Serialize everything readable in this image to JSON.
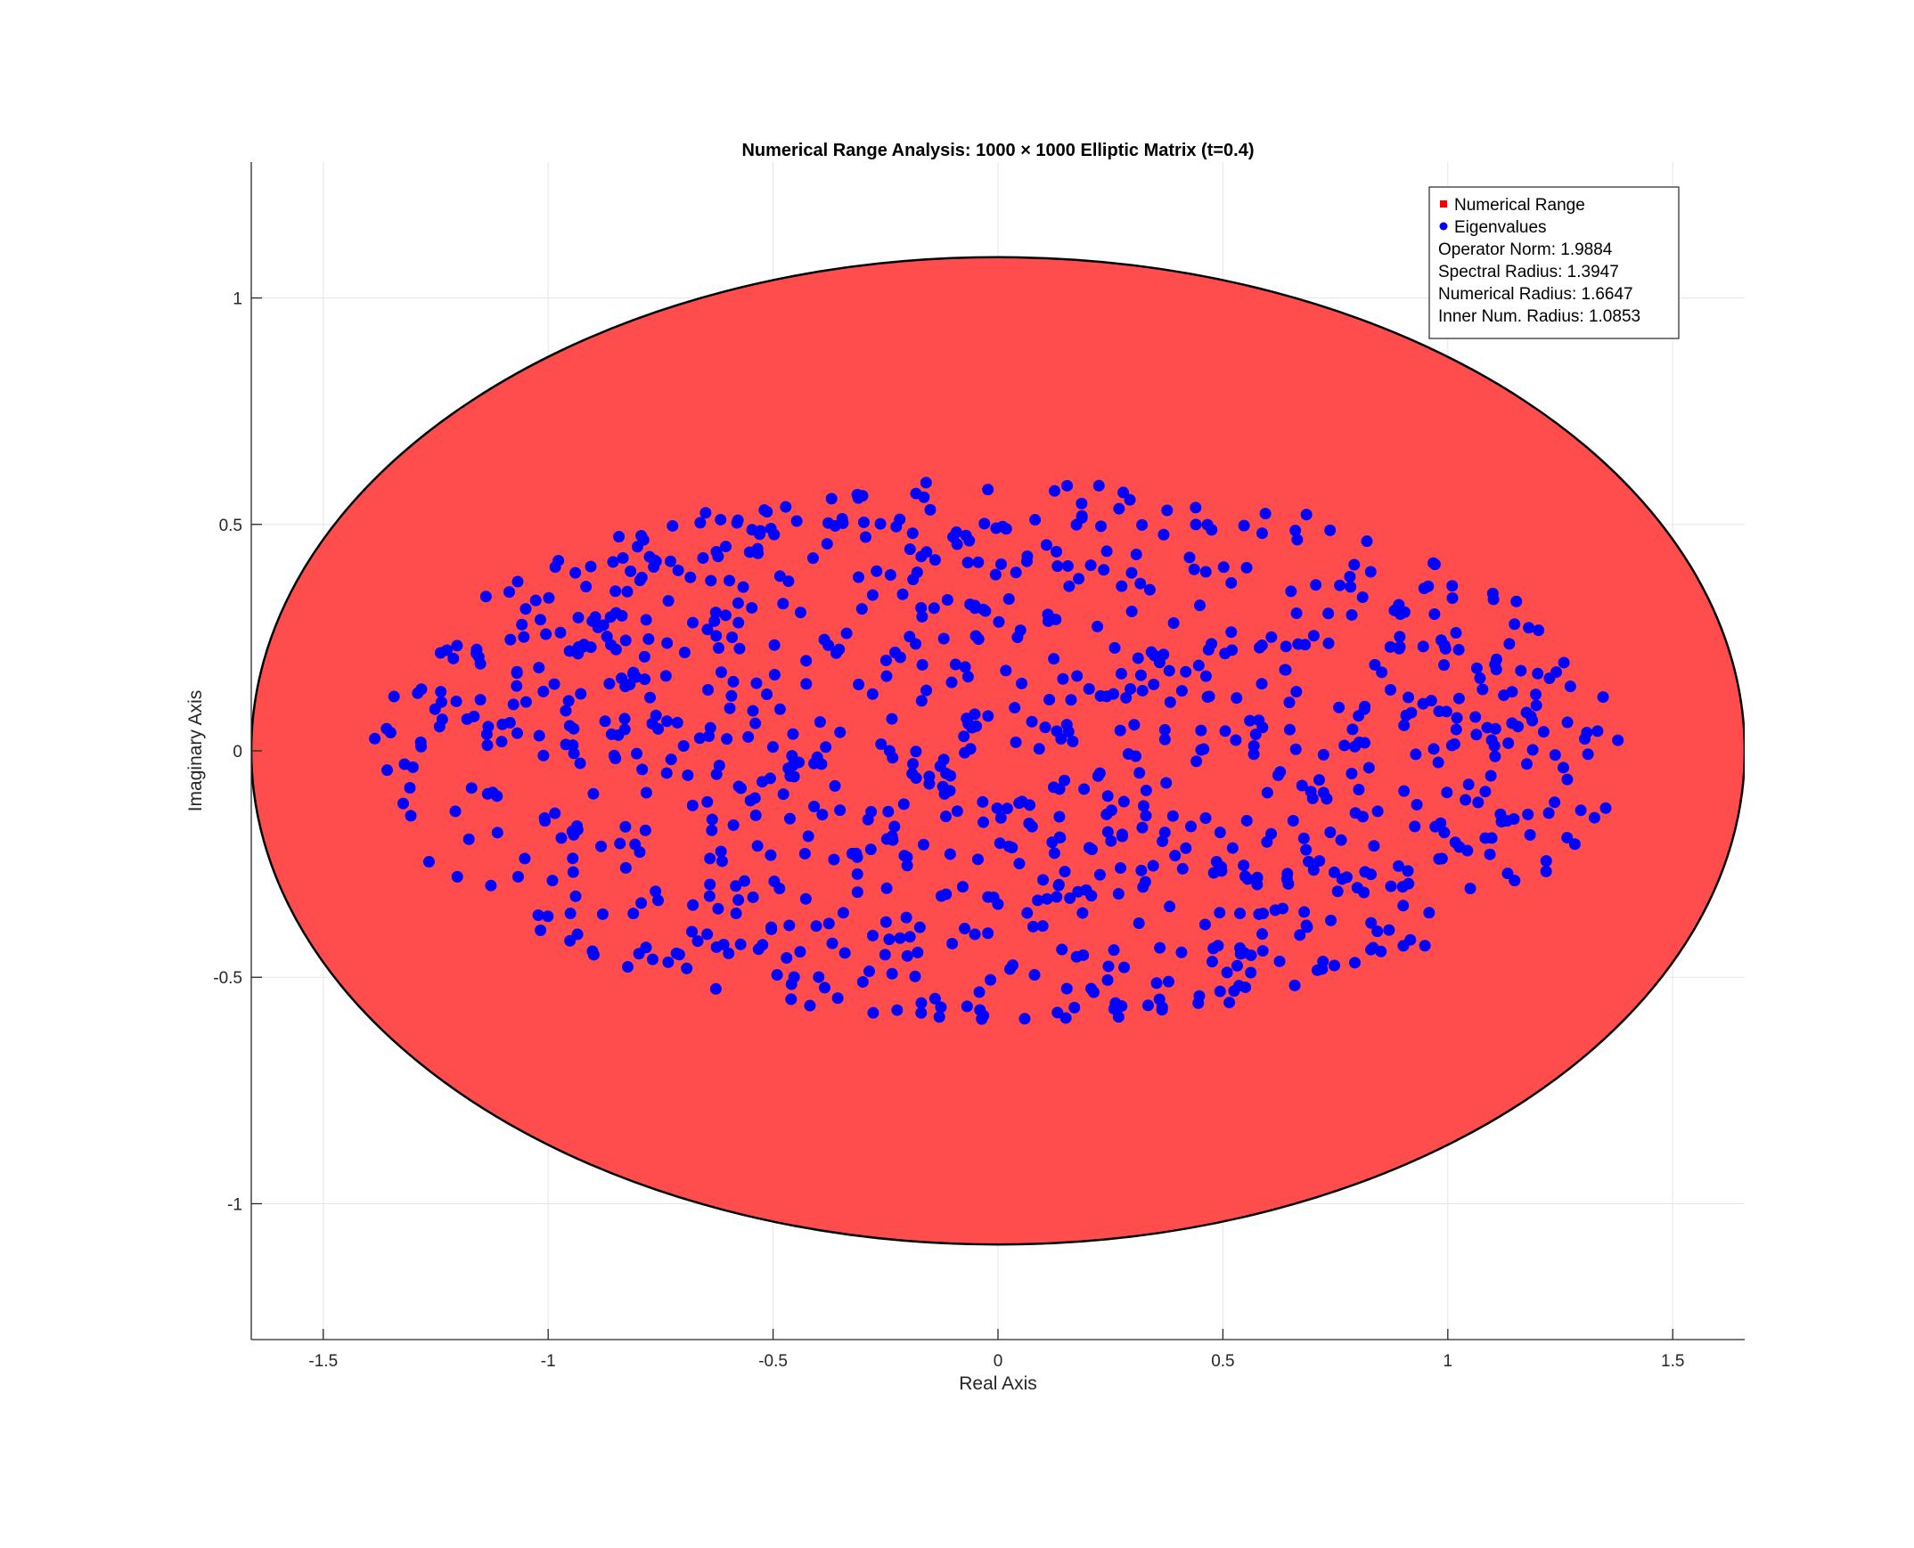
{
  "chart_data": {
    "type": "scatter",
    "title": "Numerical Range Analysis: 1000 × 1000 Elliptic Matrix (t=0.4)",
    "xlabel": "Real Axis",
    "ylabel": "Imaginary Axis",
    "xlim": [
      -1.66,
      1.66
    ],
    "ylim": [
      -1.3,
      1.3
    ],
    "xticks": [
      -1.5,
      -1,
      -0.5,
      0,
      0.5,
      1,
      1.5
    ],
    "xtick_labels": [
      "-1.5",
      "-1",
      "-0.5",
      "0",
      "0.5",
      "1",
      "1.5"
    ],
    "yticks": [
      -1,
      -0.5,
      0,
      0.5,
      1
    ],
    "ytick_labels": [
      "-1",
      "-0.5",
      "0",
      "0.5",
      "1"
    ],
    "grid": true,
    "legend_position": "top-right",
    "colors": {
      "numerical_range_fill": "#ff4d4d",
      "numerical_range_edge": "#000000",
      "eigenvalues": "#0000ff",
      "grid": "#e6e6e6"
    },
    "numerical_range": {
      "name": "Numerical Range",
      "shape": "ellipse",
      "center": [
        0,
        0
      ],
      "semi_axis_real": 1.66,
      "semi_axis_imag": 1.09
    },
    "eigenvalues": {
      "name": "Eigenvalues",
      "count": 1000,
      "distribution": "filled ellipse",
      "semi_axis_real": 1.39,
      "semi_axis_imag": 0.6
    },
    "legend": {
      "entries": [
        {
          "label": "Numerical Range",
          "color": "#ff0000",
          "marker": "square"
        },
        {
          "label": "Eigenvalues",
          "color": "#0000ff",
          "marker": "circle"
        }
      ],
      "stats": [
        "Operator Norm: 1.9884",
        "Spectral Radius: 1.3947",
        "Numerical Radius: 1.6647",
        "Inner Num. Radius: 1.0853"
      ]
    }
  }
}
